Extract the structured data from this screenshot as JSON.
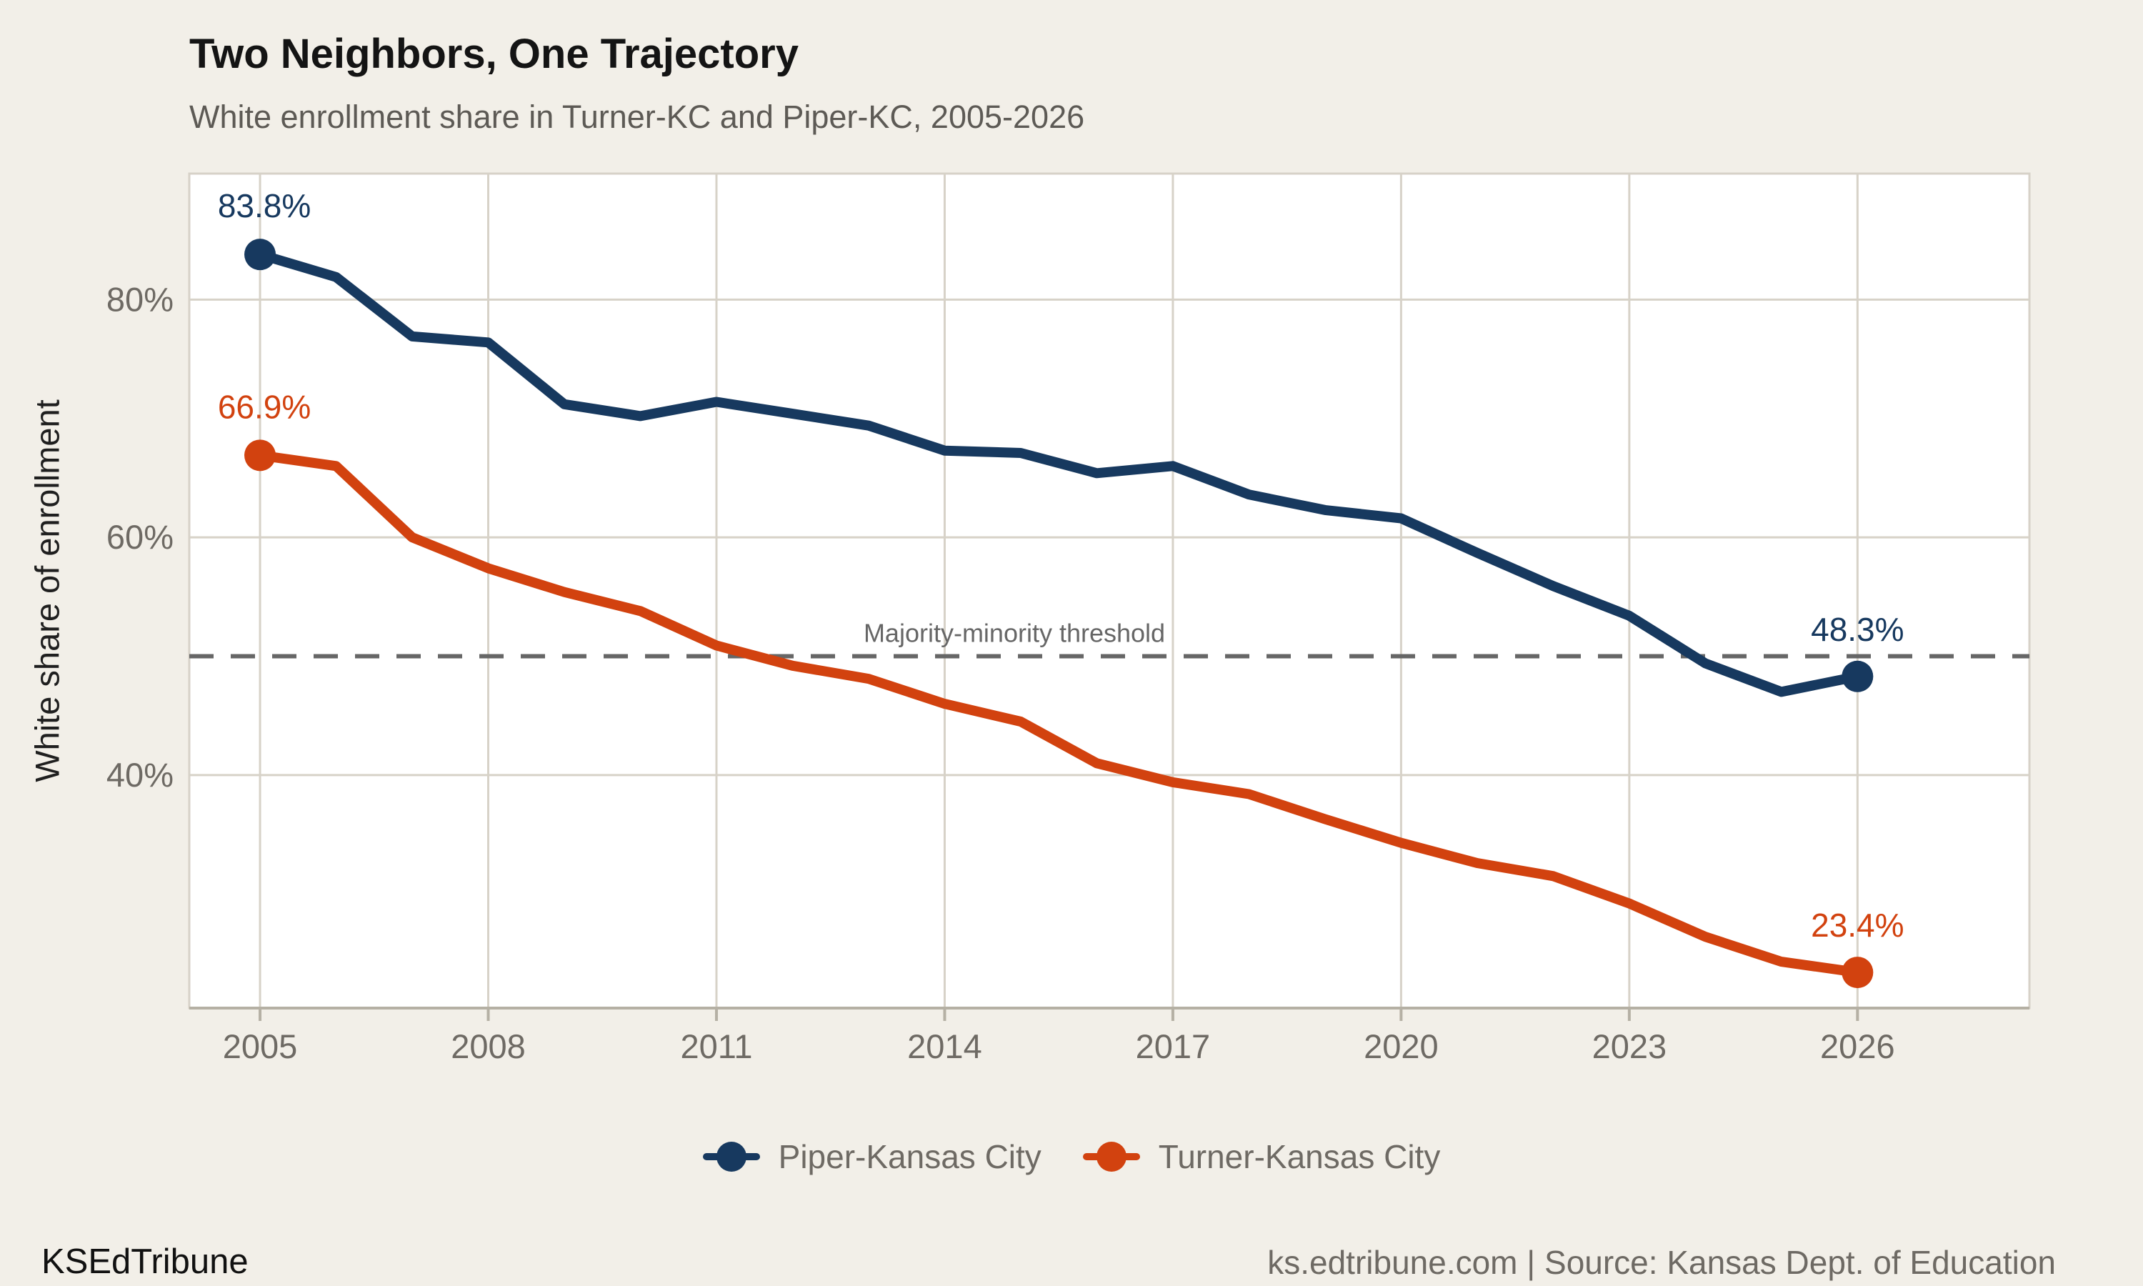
{
  "page": {
    "title": "Two Neighbors, One Trajectory",
    "subtitle": "White enrollment share in Turner-KC and Piper-KC, 2005-2026"
  },
  "footer": {
    "brand": "KSEdTribune",
    "source": "ks.edtribune.com | Source: Kansas Dept. of Education"
  },
  "colors": {
    "background": "#f2efe8",
    "plot_background": "#ffffff",
    "gridline": "#d7d2c8",
    "axis_line": "#b5b0a4",
    "tick_text": "#6e6a64",
    "threshold": "#666666",
    "piper_navy": "#17395f",
    "turner_orange": "#d2420f"
  },
  "chart_data": {
    "type": "line",
    "title": "Two Neighbors, One Trajectory",
    "subtitle": "White enrollment share in Turner-KC and Piper-KC, 2005-2026",
    "xlabel": "",
    "ylabel": "White share of enrollment",
    "grid": true,
    "legend_position": "bottom",
    "xlim": [
      2004.07,
      2028.26
    ],
    "ylim": [
      20.4,
      90.6
    ],
    "x": [
      2005,
      2006,
      2007,
      2008,
      2009,
      2010,
      2011,
      2012,
      2013,
      2014,
      2015,
      2016,
      2017,
      2018,
      2019,
      2020,
      2021,
      2022,
      2023,
      2024,
      2025,
      2026
    ],
    "x_ticks": [
      2005,
      2008,
      2011,
      2014,
      2017,
      2020,
      2023,
      2026
    ],
    "y_ticks": [
      {
        "value": 80,
        "label": "80%"
      },
      {
        "value": 60,
        "label": "60%"
      },
      {
        "value": 40,
        "label": "40%"
      }
    ],
    "threshold": {
      "value": 50,
      "label": "Majority-minority threshold"
    },
    "series": [
      {
        "name": "Piper-Kansas City",
        "color": "#17395f",
        "values": [
          83.8,
          81.9,
          76.9,
          76.4,
          71.2,
          70.2,
          71.4,
          70.4,
          69.4,
          67.3,
          67.1,
          65.4,
          66.0,
          63.6,
          62.3,
          61.6,
          58.7,
          55.9,
          53.4,
          49.4,
          47.0,
          48.3
        ],
        "start_label": "83.8%",
        "end_label": "48.3%"
      },
      {
        "name": "Turner-Kansas City",
        "color": "#d2420f",
        "values": [
          66.9,
          66.0,
          60.0,
          57.4,
          55.4,
          53.8,
          50.9,
          49.2,
          48.1,
          46.0,
          44.5,
          41.0,
          39.4,
          38.4,
          36.3,
          34.3,
          32.6,
          31.5,
          29.2,
          26.4,
          24.3,
          23.4
        ],
        "start_label": "66.9%",
        "end_label": "23.4%"
      }
    ]
  }
}
